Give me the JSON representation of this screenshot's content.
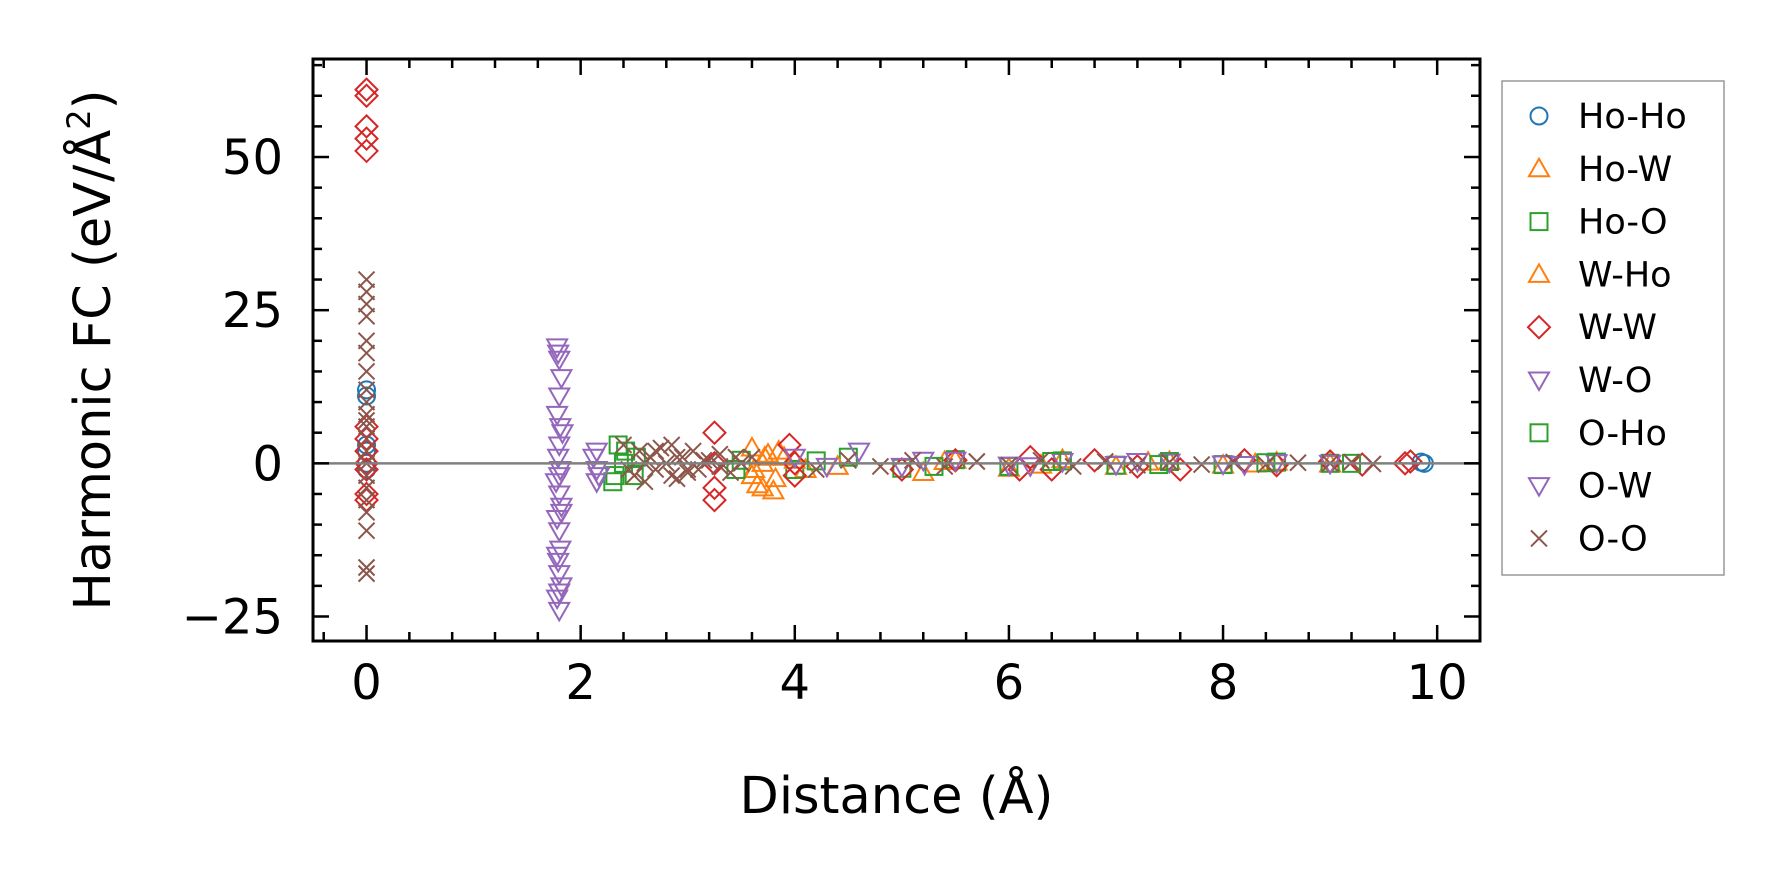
{
  "chart_data": {
    "type": "scatter",
    "title": "",
    "xlabel": "Distance (Å)",
    "ylabel_main": "Harmonic FC (eV/Å",
    "ylabel_sup": "2",
    "ylabel_close": ")",
    "xlim": [
      -0.5,
      10.4
    ],
    "ylim": [
      -29,
      66
    ],
    "xticks": [
      0,
      2,
      4,
      6,
      8,
      10
    ],
    "xtick_labels": [
      "0",
      "2",
      "4",
      "6",
      "8",
      "10"
    ],
    "yticks": [
      -25,
      0,
      25,
      50
    ],
    "ytick_labels": [
      "−25",
      "0",
      "25",
      "50"
    ],
    "zero_line": true,
    "legend_position": "outside-right",
    "series": [
      {
        "name": "Ho-Ho",
        "marker": "circle",
        "color": "#1f77b4",
        "x": [
          0,
          0,
          0,
          0,
          0,
          0,
          9.88,
          9.85
        ],
        "y": [
          12,
          11,
          2,
          0,
          -1,
          3,
          0,
          0.2
        ]
      },
      {
        "name": "Ho-W",
        "marker": "triangle-up",
        "color": "#ff7f0e",
        "x": [
          3.6,
          3.65,
          3.7,
          3.75,
          3.8,
          3.85,
          3.6,
          3.7,
          3.9,
          4.1,
          5.2,
          5.5,
          6.0,
          6.5,
          7.0,
          7.5,
          8.0,
          8.5,
          9.0
        ],
        "y": [
          2.5,
          -3.5,
          -4,
          1.5,
          -4.5,
          2,
          -2,
          0,
          1,
          -1,
          -1.5,
          0.5,
          -0.8,
          0.6,
          -0.5,
          0.3,
          -0.3,
          0.2,
          -0.1
        ]
      },
      {
        "name": "Ho-O",
        "marker": "square",
        "color": "#2ca02c",
        "x": [
          2.3,
          2.35,
          2.4,
          2.5,
          3.5,
          4.0,
          4.5,
          5.0,
          5.5,
          6.0,
          6.5,
          7.0,
          7.5,
          8.0,
          8.5,
          9.0
        ],
        "y": [
          -3,
          3,
          0,
          -2,
          0.5,
          -1,
          1,
          -0.8,
          0.6,
          -0.5,
          0.4,
          -0.3,
          0.3,
          -0.2,
          0.2,
          0
        ]
      },
      {
        "name": "W-Ho",
        "marker": "triangle-up",
        "color": "#ff7f0e",
        "x": [
          3.62,
          3.72,
          3.82,
          4.0,
          4.4,
          5.4,
          6.3,
          7.3,
          8.3
        ],
        "y": [
          -1,
          1,
          -2.5,
          0.5,
          -0.5,
          0.3,
          -0.3,
          0.2,
          -0.1
        ]
      },
      {
        "name": "W-W",
        "marker": "diamond",
        "color": "#d62728",
        "x": [
          0,
          0,
          0,
          0,
          0,
          0,
          0,
          0,
          0,
          0,
          0,
          0,
          3.25,
          3.25,
          3.25,
          3.25,
          3.95,
          4.0,
          4.0,
          5.0,
          5.5,
          6.1,
          6.2,
          6.4,
          6.8,
          7.2,
          7.6,
          8.2,
          8.5,
          9.0,
          9.3,
          9.7,
          9.75
        ],
        "y": [
          61,
          60,
          55,
          53,
          51,
          6,
          4,
          2,
          -5,
          -6,
          0,
          -1,
          5,
          -4,
          -6,
          0,
          3,
          -2,
          0,
          -1,
          0.5,
          -1,
          1,
          -1,
          0.5,
          -0.5,
          -1,
          0.5,
          -0.3,
          0.3,
          -0.2,
          0,
          0.3
        ]
      },
      {
        "name": "W-O",
        "marker": "triangle-down",
        "color": "#9467bd",
        "x": [
          1.78,
          1.8,
          1.82,
          1.8,
          1.78,
          1.83,
          1.8,
          1.79,
          1.81,
          1.77,
          1.8,
          1.82,
          1.78,
          1.8,
          1.81,
          1.79,
          1.8,
          1.82,
          1.78,
          1.8,
          2.15,
          2.15,
          2.15,
          4.0,
          4.6,
          5.0,
          5.5,
          6.0,
          6.5,
          7.0,
          7.5,
          8.0,
          8.5,
          9.0
        ],
        "y": [
          19,
          17,
          14,
          11,
          8,
          5,
          3,
          1,
          -1,
          -3,
          -5,
          -7,
          -9,
          -11,
          -14,
          -16,
          -18,
          -20,
          -22,
          -24,
          2,
          -1,
          -3,
          1,
          2,
          -0.5,
          0.5,
          -0.3,
          0.3,
          -0.2,
          0.2,
          -0.1,
          0.1,
          0
        ]
      },
      {
        "name": "O-Ho",
        "marker": "square",
        "color": "#2ca02c",
        "x": [
          2.32,
          2.42,
          2.52,
          3.45,
          4.2,
          5.3,
          6.4,
          7.4,
          8.4,
          9.2
        ],
        "y": [
          -2,
          2,
          1,
          -1,
          0.4,
          -0.5,
          0.3,
          -0.2,
          0.1,
          0
        ]
      },
      {
        "name": "O-W",
        "marker": "triangle-down",
        "color": "#9467bd",
        "x": [
          1.79,
          1.81,
          1.8,
          1.82,
          1.78,
          1.8,
          2.12,
          2.17,
          4.3,
          5.2,
          6.2,
          7.2,
          8.2
        ],
        "y": [
          18,
          6,
          -2,
          -8,
          -15,
          -21,
          1,
          -2,
          -0.5,
          0.5,
          -0.4,
          0.3,
          -0.2
        ]
      },
      {
        "name": "O-O",
        "marker": "x",
        "color": "#8c564b",
        "x": [
          0,
          0,
          0,
          0,
          0,
          0,
          0,
          0,
          0,
          0,
          0,
          0,
          0,
          0,
          0,
          0,
          0,
          0,
          0,
          0,
          0,
          0,
          2.4,
          2.5,
          2.55,
          2.6,
          2.65,
          2.7,
          2.75,
          2.8,
          2.85,
          2.9,
          2.95,
          3.0,
          3.05,
          3.1,
          3.2,
          3.3,
          3.4,
          3.5,
          3.6,
          2.45,
          2.6,
          2.7,
          2.85,
          2.9,
          3.0,
          3.15,
          3.3,
          3.45,
          4.2,
          4.5,
          4.8,
          5.1,
          5.4,
          5.7,
          6.0,
          6.3,
          6.6,
          6.9,
          7.2,
          7.5,
          7.8,
          8.1,
          8.4,
          8.7,
          9.0,
          9.2,
          9.4
        ],
        "y": [
          30,
          28,
          26,
          24,
          20,
          18,
          15,
          12,
          10,
          8,
          6,
          4,
          2,
          0,
          -2,
          -4,
          -6,
          -8,
          -11,
          -17,
          -18,
          7,
          3,
          -2,
          2,
          -3,
          1,
          -1,
          2.5,
          0,
          3,
          -2.5,
          1,
          -1.5,
          2,
          -1,
          0.5,
          1.5,
          -1.5,
          0,
          1,
          -1,
          0,
          2,
          -2,
          1,
          -1,
          0.5,
          -0.5,
          1,
          -1,
          0.5,
          -0.5,
          0.5,
          -0.5,
          0.3,
          -0.3,
          0.5,
          -0.5,
          0.3,
          -0.3,
          0.2,
          -0.2,
          0.2,
          -0.2,
          0.1,
          0,
          0.2,
          -0.1
        ]
      }
    ]
  }
}
